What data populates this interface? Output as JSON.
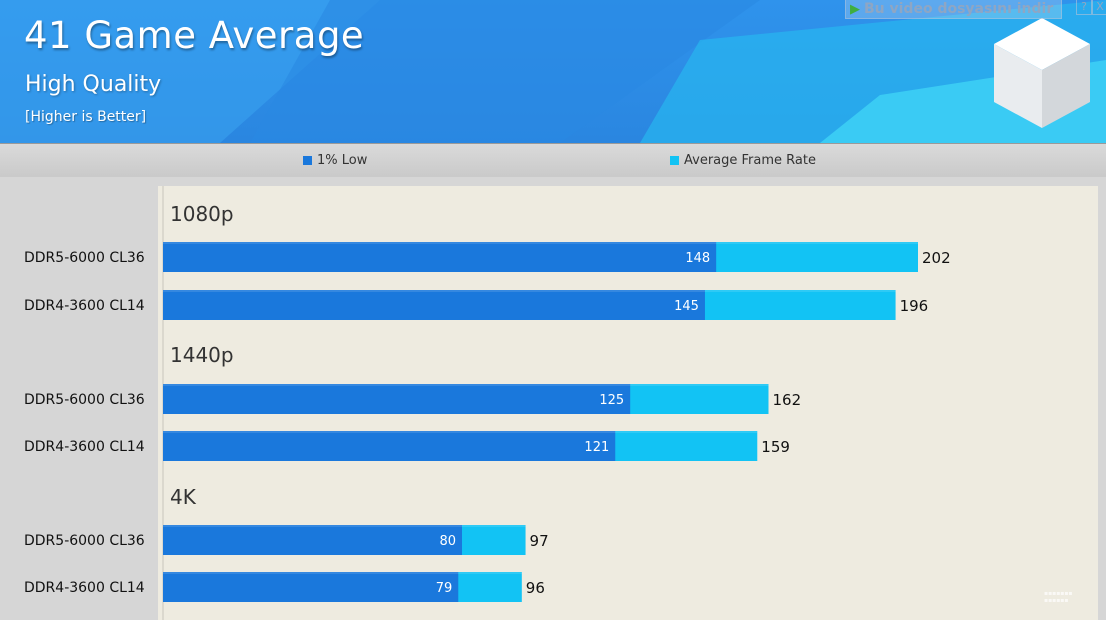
{
  "header": {
    "title": "41 Game Average",
    "subtitle": "High Quality",
    "note": "[Higher is Better]"
  },
  "overlay": {
    "download_label": "Bu video dosyasını indir",
    "help_label": "?",
    "close_label": "X"
  },
  "colors": {
    "low": "#1a78dc",
    "avg": "#12c3f4",
    "header_bg": "#2f93ec",
    "plot_bg": "#eeebe0"
  },
  "chart_data": {
    "type": "bar",
    "orientation": "horizontal",
    "title": "41 Game Average",
    "subtitle": "High Quality",
    "note": "[Higher is Better]",
    "legend": [
      "1% Low",
      "Average Frame Rate"
    ],
    "legend_position": "top",
    "xlim": [
      0,
      202
    ],
    "groups": [
      {
        "name": "1080p",
        "rows": [
          {
            "label": "DDR5-6000 CL36",
            "low": 148,
            "avg": 202
          },
          {
            "label": "DDR4-3600 CL14",
            "low": 145,
            "avg": 196
          }
        ]
      },
      {
        "name": "1440p",
        "rows": [
          {
            "label": "DDR5-6000 CL36",
            "low": 125,
            "avg": 162
          },
          {
            "label": "DDR4-3600 CL14",
            "low": 121,
            "avg": 159
          }
        ]
      },
      {
        "name": "4K",
        "rows": [
          {
            "label": "DDR5-6000 CL36",
            "low": 80,
            "avg": 97
          },
          {
            "label": "DDR4-3600 CL14",
            "low": 79,
            "avg": 96
          }
        ]
      }
    ]
  }
}
